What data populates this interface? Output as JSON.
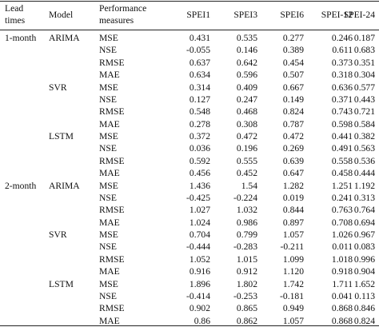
{
  "header": {
    "lead_times": [
      "Lead",
      "times"
    ],
    "model": "Model",
    "performance": [
      "Performance",
      "measures"
    ],
    "spei1": "SPEI1",
    "spei3": "SPEI3",
    "spei6": "SPEI6",
    "spei12": "SPEI-12",
    "spei24": "SPEI-24"
  },
  "rows": [
    {
      "lead": "1-month",
      "model": "ARIMA",
      "measure": "MSE",
      "v": [
        "0.431",
        "0.535",
        "0.277",
        "0.246",
        "0.187"
      ]
    },
    {
      "lead": "",
      "model": "",
      "measure": "NSE",
      "v": [
        "-0.055",
        "0.146",
        "0.389",
        "0.611",
        "0.683"
      ]
    },
    {
      "lead": "",
      "model": "",
      "measure": "RMSE",
      "v": [
        "0.637",
        "0.642",
        "0.454",
        "0.373",
        "0.351"
      ]
    },
    {
      "lead": "",
      "model": "",
      "measure": "MAE",
      "v": [
        "0.634",
        "0.596",
        "0.507",
        "0.318",
        "0.304"
      ]
    },
    {
      "lead": "",
      "model": "SVR",
      "measure": "MSE",
      "v": [
        "0.314",
        "0.409",
        "0.667",
        "0.636",
        "0.577"
      ]
    },
    {
      "lead": "",
      "model": "",
      "measure": "NSE",
      "v": [
        "0.127",
        "0.247",
        "0.149",
        "0.371",
        "0.443"
      ]
    },
    {
      "lead": "",
      "model": "",
      "measure": "RMSE",
      "v": [
        "0.548",
        "0.468",
        "0.824",
        "0.743",
        "0.721"
      ]
    },
    {
      "lead": "",
      "model": "",
      "measure": "MAE",
      "v": [
        "0.278",
        "0.308",
        "0.787",
        "0.598",
        "0.584"
      ]
    },
    {
      "lead": "",
      "model": "LSTM",
      "measure": "MSE",
      "v": [
        "0.372",
        "0.472",
        "0.472",
        "0.441",
        "0.382"
      ]
    },
    {
      "lead": "",
      "model": "",
      "measure": "NSE",
      "v": [
        "0.036",
        "0.196",
        "0.269",
        "0.491",
        "0.563"
      ]
    },
    {
      "lead": "",
      "model": "",
      "measure": "RMSE",
      "v": [
        "0.592",
        "0.555",
        "0.639",
        "0.558",
        "0.536"
      ]
    },
    {
      "lead": "",
      "model": "",
      "measure": "MAE",
      "v": [
        "0.456",
        "0.452",
        "0.647",
        "0.458",
        "0.444"
      ]
    },
    {
      "lead": "2-month",
      "model": "ARIMA",
      "measure": "MSE",
      "v": [
        "1.436",
        "1.54",
        "1.282",
        "1.251",
        "1.192"
      ]
    },
    {
      "lead": "",
      "model": "",
      "measure": "NSE",
      "v": [
        "-0.425",
        "-0.224",
        "0.019",
        "0.241",
        "0.313"
      ]
    },
    {
      "lead": "",
      "model": "",
      "measure": "RMSE",
      "v": [
        "1.027",
        "1.032",
        "0.844",
        "0.763",
        "0.764"
      ]
    },
    {
      "lead": "",
      "model": "",
      "measure": "MAE",
      "v": [
        "1.024",
        "0.986",
        "0.897",
        "0.708",
        "0.694"
      ]
    },
    {
      "lead": "",
      "model": "SVR",
      "measure": "MSE",
      "v": [
        "0.704",
        "0.799",
        "1.057",
        "1.026",
        "0.967"
      ]
    },
    {
      "lead": "",
      "model": "",
      "measure": "NSE",
      "v": [
        "-0.444",
        "-0.283",
        "-0.211",
        "0.011",
        "0.083"
      ]
    },
    {
      "lead": "",
      "model": "",
      "measure": "RMSE",
      "v": [
        "1.052",
        "1.015",
        "1.099",
        "1.018",
        "0.996"
      ]
    },
    {
      "lead": "",
      "model": "",
      "measure": "MAE",
      "v": [
        "0.916",
        "0.912",
        "1.120",
        "0.918",
        "0.904"
      ]
    },
    {
      "lead": "",
      "model": "LSTM",
      "measure": "MSE",
      "v": [
        "1.896",
        "1.802",
        "1.742",
        "1.711",
        "1.652"
      ]
    },
    {
      "lead": "",
      "model": "",
      "measure": "NSE",
      "v": [
        "-0.414",
        "-0.253",
        "-0.181",
        "0.041",
        "0.113"
      ]
    },
    {
      "lead": "",
      "model": "",
      "measure": "RMSE",
      "v": [
        "0.902",
        "0.865",
        "0.949",
        "0.868",
        "0.846"
      ]
    },
    {
      "lead": "",
      "model": "",
      "measure": "MAE",
      "v": [
        "0.86",
        "0.862",
        "1.057",
        "0.868",
        "0.824"
      ]
    }
  ]
}
